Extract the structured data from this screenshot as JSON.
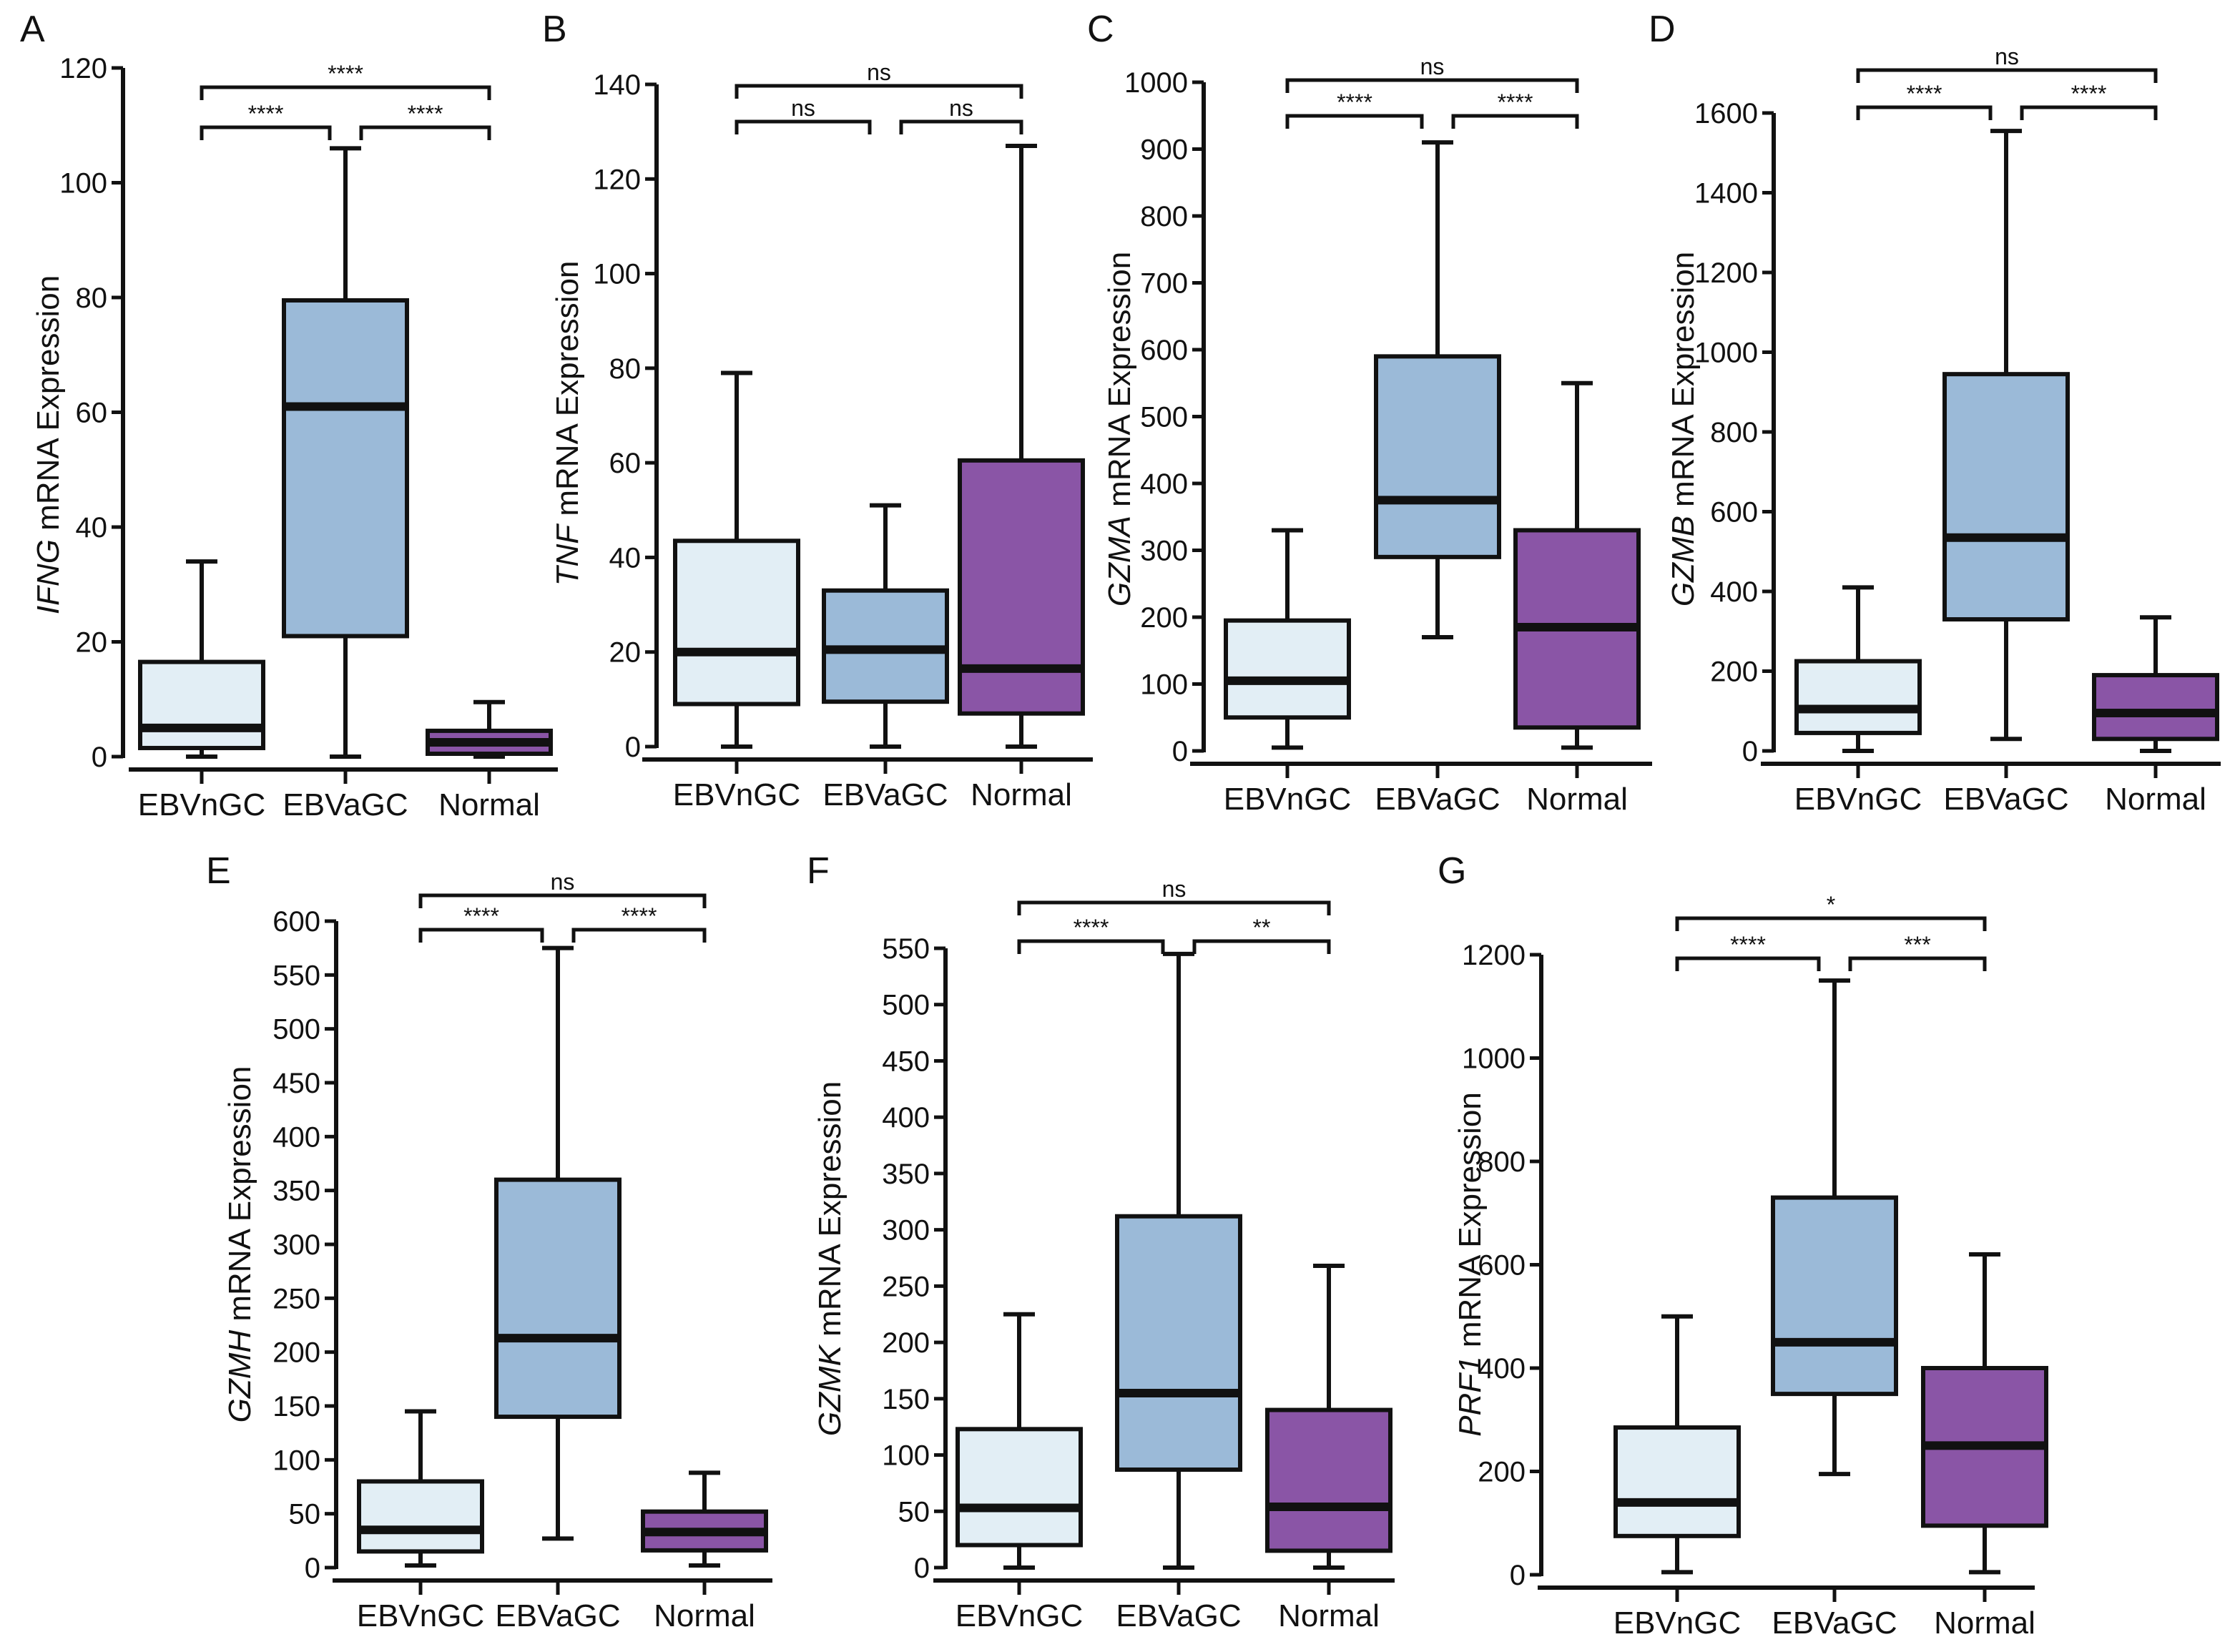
{
  "figure": {
    "colors": {
      "EBVnGC": "#e2eef5",
      "EBVaGC": "#9bbad8",
      "Normal": "#8a55a6",
      "stroke": "#111111"
    }
  },
  "chart_data": [
    {
      "type": "box",
      "panel": "A",
      "gene": "IFNG",
      "ylabel_suffix": " mRNA Expression",
      "ylim": [
        0,
        120
      ],
      "yticks": [
        "0",
        "20",
        "40",
        "60",
        "80",
        "100",
        "120"
      ],
      "ytick_values": [
        0,
        20,
        40,
        60,
        80,
        100,
        120
      ],
      "categories": [
        "EBVnGC",
        "EBVaGC",
        "Normal"
      ],
      "boxes": [
        {
          "min": 0,
          "q1": 1.5,
          "median": 5,
          "q3": 16.5,
          "max": 34
        },
        {
          "min": 0,
          "q1": 21,
          "median": 61,
          "q3": 79.5,
          "max": 106
        },
        {
          "min": 0,
          "q1": 0.5,
          "median": 2.5,
          "q3": 4.5,
          "max": 9.5
        }
      ],
      "comparisons": [
        {
          "from": 0,
          "to": 1,
          "label": "****",
          "level": 0
        },
        {
          "from": 1,
          "to": 2,
          "label": "****",
          "level": 0
        },
        {
          "from": 0,
          "to": 2,
          "label": "****",
          "level": 1
        }
      ]
    },
    {
      "type": "box",
      "panel": "B",
      "gene": "TNF",
      "ylabel_suffix": " mRNA Expression",
      "ylim": [
        0,
        140
      ],
      "yticks": [
        "0",
        "20",
        "40",
        "60",
        "80",
        "100",
        "120",
        "140"
      ],
      "ytick_values": [
        0,
        20,
        40,
        60,
        80,
        100,
        120,
        140
      ],
      "categories": [
        "EBVnGC",
        "EBVaGC",
        "Normal"
      ],
      "boxes": [
        {
          "min": 0,
          "q1": 9,
          "median": 20,
          "q3": 43.5,
          "max": 79
        },
        {
          "min": 0,
          "q1": 9.5,
          "median": 20.5,
          "q3": 33,
          "max": 51
        },
        {
          "min": 0,
          "q1": 7,
          "median": 16.5,
          "q3": 60.5,
          "max": 127
        }
      ],
      "comparisons": [
        {
          "from": 0,
          "to": 1,
          "label": "ns",
          "level": 0
        },
        {
          "from": 1,
          "to": 2,
          "label": "ns",
          "level": 0
        },
        {
          "from": 0,
          "to": 2,
          "label": "ns",
          "level": 1
        }
      ]
    },
    {
      "type": "box",
      "panel": "C",
      "gene": "GZMA",
      "ylabel_suffix": " mRNA Expression",
      "ylim": [
        0,
        1000
      ],
      "yticks": [
        "0",
        "100",
        "200",
        "300",
        "400",
        "500",
        "600",
        "700",
        "800",
        "900",
        "1000"
      ],
      "ytick_values": [
        0,
        100,
        200,
        300,
        400,
        500,
        600,
        700,
        800,
        900,
        1000
      ],
      "categories": [
        "EBVnGC",
        "EBVaGC",
        "Normal"
      ],
      "boxes": [
        {
          "min": 5,
          "q1": 50,
          "median": 105,
          "q3": 195,
          "max": 330
        },
        {
          "min": 170,
          "q1": 290,
          "median": 375,
          "q3": 590,
          "max": 910
        },
        {
          "min": 5,
          "q1": 35,
          "median": 185,
          "q3": 330,
          "max": 550
        }
      ],
      "comparisons": [
        {
          "from": 0,
          "to": 1,
          "label": "****",
          "level": 0
        },
        {
          "from": 1,
          "to": 2,
          "label": "****",
          "level": 0
        },
        {
          "from": 0,
          "to": 2,
          "label": "ns",
          "level": 1
        }
      ]
    },
    {
      "type": "box",
      "panel": "D",
      "gene": "GZMB",
      "ylabel_suffix": " mRNA Expression",
      "ylim": [
        0,
        1600
      ],
      "yticks": [
        "0",
        "200",
        "400",
        "600",
        "800",
        "1000",
        "1200",
        "1400",
        "1600"
      ],
      "ytick_values": [
        0,
        200,
        400,
        600,
        800,
        1000,
        1200,
        1400,
        1600
      ],
      "categories": [
        "EBVnGC",
        "EBVaGC",
        "Normal"
      ],
      "boxes": [
        {
          "min": 0,
          "q1": 45,
          "median": 105,
          "q3": 225,
          "max": 410
        },
        {
          "min": 30,
          "q1": 330,
          "median": 535,
          "q3": 945,
          "max": 1555
        },
        {
          "min": 0,
          "q1": 30,
          "median": 95,
          "q3": 190,
          "max": 335
        }
      ],
      "comparisons": [
        {
          "from": 0,
          "to": 1,
          "label": "****",
          "level": 0
        },
        {
          "from": 1,
          "to": 2,
          "label": "****",
          "level": 0
        },
        {
          "from": 0,
          "to": 2,
          "label": "ns",
          "level": 1
        }
      ]
    },
    {
      "type": "box",
      "panel": "E",
      "gene": "GZMH",
      "ylabel_suffix": " mRNA Expression",
      "ylim": [
        0,
        600
      ],
      "yticks": [
        "0",
        "50",
        "100",
        "150",
        "200",
        "250",
        "300",
        "350",
        "400",
        "450",
        "500",
        "550",
        "600"
      ],
      "ytick_values": [
        0,
        50,
        100,
        150,
        200,
        250,
        300,
        350,
        400,
        450,
        500,
        550,
        600
      ],
      "categories": [
        "EBVnGC",
        "EBVaGC",
        "Normal"
      ],
      "boxes": [
        {
          "min": 2,
          "q1": 15,
          "median": 35,
          "q3": 80,
          "max": 145
        },
        {
          "min": 27,
          "q1": 140,
          "median": 213,
          "q3": 360,
          "max": 575
        },
        {
          "min": 2,
          "q1": 16,
          "median": 33,
          "q3": 52,
          "max": 88
        }
      ],
      "comparisons": [
        {
          "from": 0,
          "to": 1,
          "label": "****",
          "level": 0
        },
        {
          "from": 1,
          "to": 2,
          "label": "****",
          "level": 0
        },
        {
          "from": 0,
          "to": 2,
          "label": "ns",
          "level": 1
        }
      ]
    },
    {
      "type": "box",
      "panel": "F",
      "gene": "GZMK",
      "ylabel_suffix": " mRNA Expression",
      "ylim": [
        0,
        550
      ],
      "yticks": [
        "0",
        "50",
        "100",
        "150",
        "200",
        "250",
        "300",
        "350",
        "400",
        "450",
        "500",
        "550"
      ],
      "ytick_values": [
        0,
        50,
        100,
        150,
        200,
        250,
        300,
        350,
        400,
        450,
        500,
        550
      ],
      "categories": [
        "EBVnGC",
        "EBVaGC",
        "Normal"
      ],
      "boxes": [
        {
          "min": 0,
          "q1": 20,
          "median": 53,
          "q3": 123,
          "max": 225
        },
        {
          "min": 0,
          "q1": 87,
          "median": 155,
          "q3": 312,
          "max": 545
        },
        {
          "min": 0,
          "q1": 15,
          "median": 54,
          "q3": 140,
          "max": 268
        }
      ],
      "comparisons": [
        {
          "from": 0,
          "to": 1,
          "label": "****",
          "level": 0
        },
        {
          "from": 1,
          "to": 2,
          "label": "**",
          "level": 0
        },
        {
          "from": 0,
          "to": 2,
          "label": "ns",
          "level": 1
        }
      ]
    },
    {
      "type": "box",
      "panel": "G",
      "gene": "PRF1",
      "ylabel_suffix": " mRNA Expression",
      "ylim": [
        0,
        1200
      ],
      "yticks": [
        "0",
        "200",
        "400",
        "600",
        "800",
        "1000",
        "1200"
      ],
      "ytick_values": [
        0,
        200,
        400,
        600,
        800,
        1000,
        1200
      ],
      "categories": [
        "EBVnGC",
        "EBVaGC",
        "Normal"
      ],
      "boxes": [
        {
          "min": 5,
          "q1": 75,
          "median": 140,
          "q3": 285,
          "max": 500
        },
        {
          "min": 195,
          "q1": 350,
          "median": 450,
          "q3": 730,
          "max": 1150
        },
        {
          "min": 5,
          "q1": 95,
          "median": 250,
          "q3": 400,
          "max": 620
        }
      ],
      "comparisons": [
        {
          "from": 0,
          "to": 1,
          "label": "****",
          "level": 0
        },
        {
          "from": 1,
          "to": 2,
          "label": "***",
          "level": 0
        },
        {
          "from": 0,
          "to": 2,
          "label": "*",
          "level": 1
        }
      ]
    }
  ]
}
